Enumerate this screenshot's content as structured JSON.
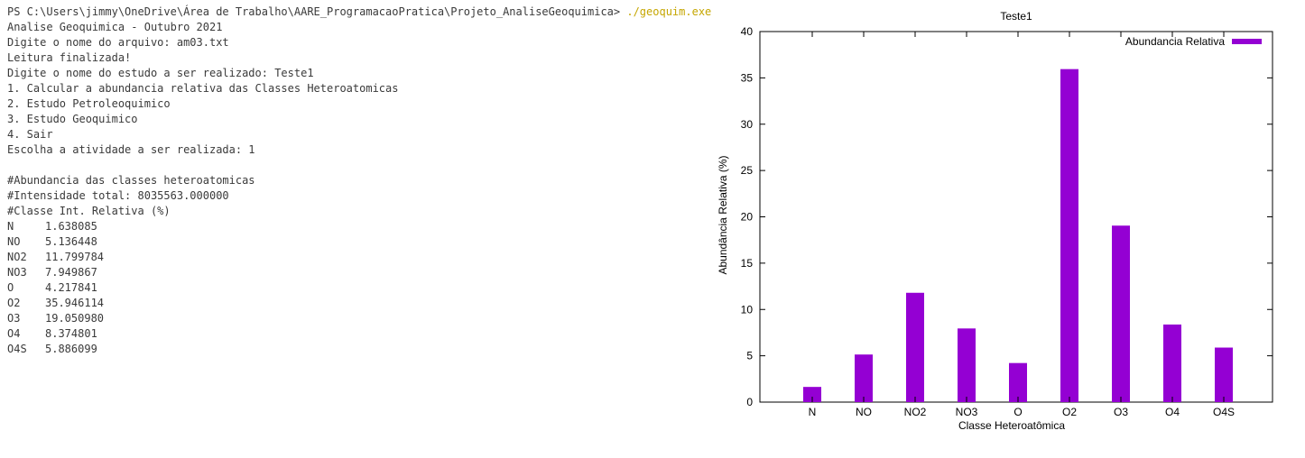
{
  "terminal": {
    "prompt": "PS C:\\Users\\jimmy\\OneDrive\\Área de Trabalho\\AARE_ProgramacaoPratica\\Projeto_AnaliseGeoquimica> ",
    "command": "./geoquim.exe",
    "lines_before": [
      "Analise Geoquimica - Outubro 2021",
      "Digite o nome do arquivo: am03.txt",
      "Leitura finalizada!",
      "Digite o nome do estudo a ser realizado: Teste1",
      "1. Calcular a abundancia relativa das Classes Heteroatomicas",
      "2. Estudo Petroleoquimico",
      "3. Estudo Geoquimico",
      "4. Sair",
      "Escolha a atividade a ser realizada: 1"
    ],
    "lines_after": [
      "#Abundancia das classes heteroatomicas",
      "#Intensidade total: 8035563.000000",
      "#Classe Int. Relativa (%)"
    ],
    "rows": [
      {
        "cls": "N",
        "val": "1.638085"
      },
      {
        "cls": "NO",
        "val": "5.136448"
      },
      {
        "cls": "NO2",
        "val": "11.799784"
      },
      {
        "cls": "NO3",
        "val": "7.949867"
      },
      {
        "cls": "O",
        "val": "4.217841"
      },
      {
        "cls": "O2",
        "val": "35.946114"
      },
      {
        "cls": "O3",
        "val": "19.050980"
      },
      {
        "cls": "O4",
        "val": "8.374801"
      },
      {
        "cls": "O4S",
        "val": "5.886099"
      }
    ]
  },
  "chart_data": {
    "type": "bar",
    "title": "Teste1",
    "xlabel": "Classe Heteroatômica",
    "ylabel": "Abundância Relativa (%)",
    "categories": [
      "N",
      "NO",
      "NO2",
      "NO3",
      "O",
      "O2",
      "O3",
      "O4",
      "O4S"
    ],
    "series": [
      {
        "name": "Abundancia Relativa",
        "values": [
          1.638085,
          5.136448,
          11.799784,
          7.949867,
          4.217841,
          35.946114,
          19.05098,
          8.374801,
          5.886099
        ]
      }
    ],
    "ylim": [
      0,
      40
    ],
    "yticks": [
      0,
      5,
      10,
      15,
      20,
      25,
      30,
      35,
      40
    ],
    "legend_position": "top-right",
    "grid": false,
    "color": "#9400d3"
  }
}
